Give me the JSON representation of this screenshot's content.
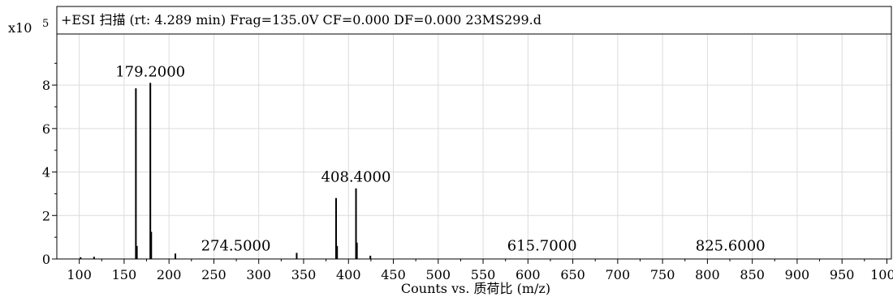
{
  "chart_data": {
    "type": "line",
    "title": "+ESI 扫描 (rt: 4.289 min) Frag=135.0V CF=0.000 DF=0.000 23MS299.d",
    "xlabel": "Counts vs. 质荷比 (m/z)",
    "ylabel": "",
    "y_scale_label": "x10",
    "y_scale_exponent": "5",
    "xlim": [
      75,
      1005
    ],
    "ylim": [
      0,
      10.35
    ],
    "x_ticks": [
      100,
      150,
      200,
      250,
      300,
      350,
      400,
      450,
      500,
      550,
      600,
      650,
      700,
      750,
      800,
      850,
      900,
      950,
      1000
    ],
    "y_ticks": [
      0,
      2,
      4,
      6,
      8
    ],
    "grid": true,
    "series": [
      {
        "style": "stick",
        "x": [
          101.5,
          116.5,
          163.1,
          164.2,
          179.2,
          180.2,
          207.1,
          342.3,
          386.2,
          387.3,
          408.4,
          409.4,
          424.4
        ],
        "y": [
          0.08,
          0.1,
          7.85,
          0.6,
          8.1,
          1.25,
          0.25,
          0.28,
          2.8,
          0.6,
          3.25,
          0.75,
          0.15
        ]
      }
    ],
    "annotations": [
      {
        "text": "179.2000",
        "x": 179.2,
        "y": 8.1
      },
      {
        "text": "408.4000",
        "x": 408.4,
        "y": 3.25
      },
      {
        "text": "274.5000",
        "x": 274.5,
        "y": 0.1
      },
      {
        "text": "615.7000",
        "x": 615.7,
        "y": 0.1
      },
      {
        "text": "825.6000",
        "x": 825.6,
        "y": 0.1
      }
    ]
  }
}
